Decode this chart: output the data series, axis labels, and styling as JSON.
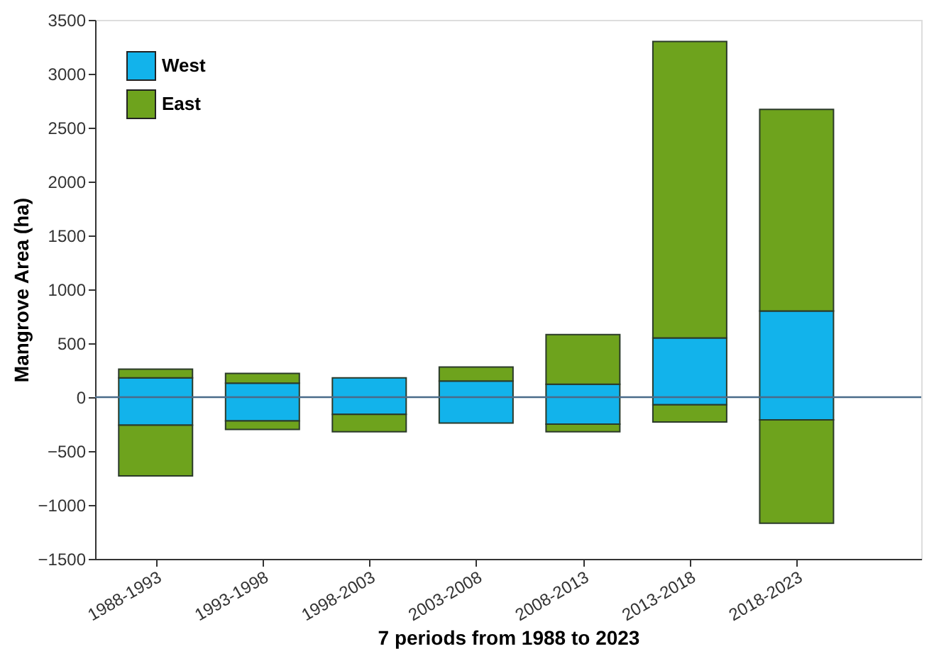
{
  "chart_data": {
    "type": "bar",
    "stacked": true,
    "xlabel": "7 periods from 1988 to 2023",
    "ylabel": "Mangrove Area (ha)",
    "categories": [
      "1988-1993",
      "1993-1998",
      "1998-2003",
      "2003-2008",
      "2008-2013",
      "2013-2018",
      "2018-2023"
    ],
    "series": [
      {
        "name": "West",
        "color": "#12b3eb",
        "values": [
          180,
          130,
          180,
          150,
          120,
          550,
          800
        ]
      },
      {
        "color": "#12b3eb",
        "values": [
          -260,
          -220,
          -160,
          -240,
          -250,
          -70,
          -210
        ]
      },
      {
        "name": "East",
        "color": "#6ea31d",
        "values": [
          80,
          90,
          0,
          130,
          460,
          2750,
          1870
        ]
      },
      {
        "color": "#6ea31d",
        "values": [
          -470,
          -80,
          -160,
          0,
          -70,
          -160,
          -960
        ]
      }
    ],
    "ylim": [
      -1500,
      3500
    ],
    "yticks": [
      -1500,
      -1000,
      -500,
      0,
      500,
      1000,
      1500,
      2000,
      2500,
      3000,
      3500
    ],
    "ref_lines": [
      {
        "axis": "y",
        "value": 0,
        "color": "#4a6b8a"
      }
    ],
    "legend": "top left",
    "grid": false
  }
}
